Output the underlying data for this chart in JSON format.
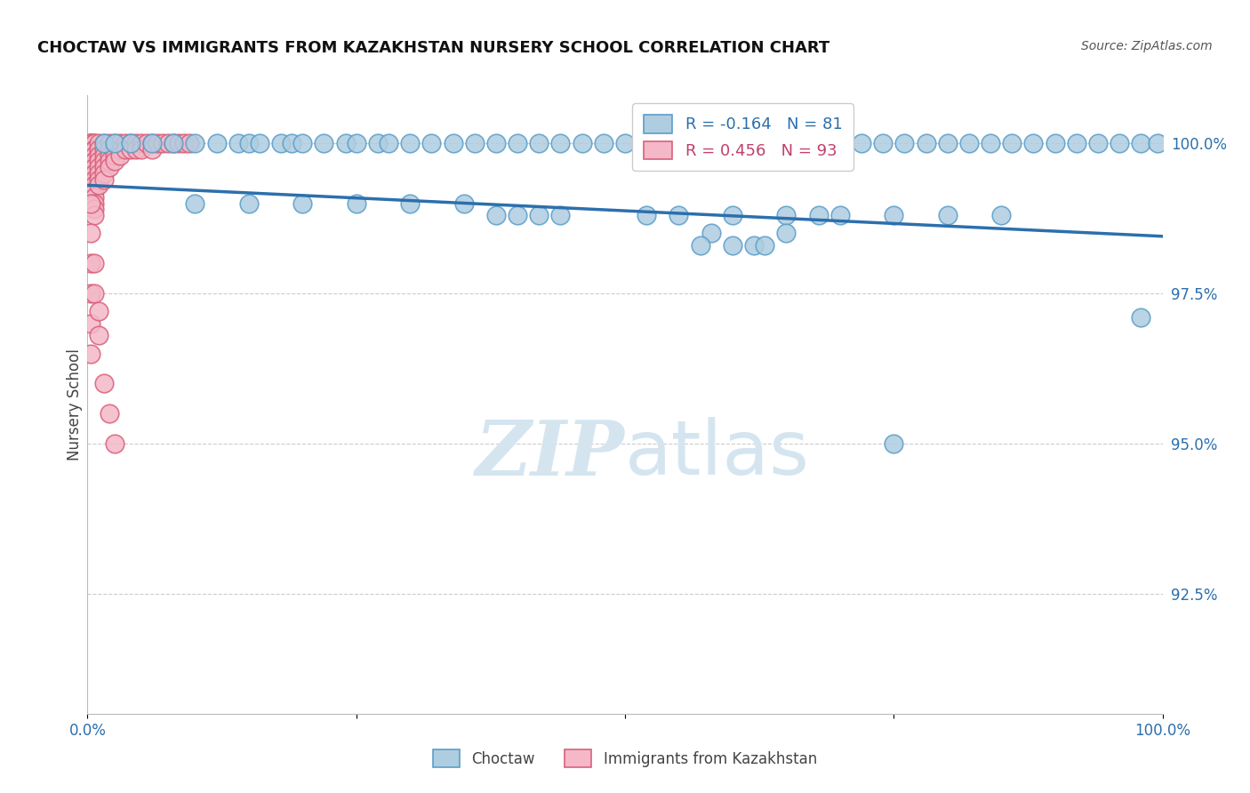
{
  "title": "CHOCTAW VS IMMIGRANTS FROM KAZAKHSTAN NURSERY SCHOOL CORRELATION CHART",
  "source": "Source: ZipAtlas.com",
  "ylabel": "Nursery School",
  "xlim": [
    0.0,
    1.0
  ],
  "ylim": [
    0.905,
    1.008
  ],
  "yticks": [
    0.925,
    0.95,
    0.975,
    1.0
  ],
  "ytick_labels": [
    "92.5%",
    "95.0%",
    "97.5%",
    "100.0%"
  ],
  "xticks": [
    0.0,
    0.25,
    0.5,
    0.75,
    1.0
  ],
  "xtick_labels": [
    "0.0%",
    "",
    "",
    "",
    "100.0%"
  ],
  "blue_R": -0.164,
  "blue_N": 81,
  "pink_R": 0.456,
  "pink_N": 93,
  "blue_color": "#aecde1",
  "pink_color": "#f4b8c8",
  "blue_edge": "#5b9ec9",
  "pink_edge": "#d9607a",
  "trendline_color": "#2c6fad",
  "trendline_start_x": 0.0,
  "trendline_start_y": 0.993,
  "trendline_end_x": 1.0,
  "trendline_end_y": 0.9845,
  "background_color": "#ffffff",
  "grid_color": "#cccccc",
  "watermark_color": "#d5e5f0",
  "legend_blue_label": "Choctaw",
  "legend_pink_label": "Immigrants from Kazakhstan",
  "blue_x": [
    0.015,
    0.025,
    0.04,
    0.06,
    0.08,
    0.1,
    0.12,
    0.14,
    0.15,
    0.16,
    0.18,
    0.19,
    0.2,
    0.22,
    0.24,
    0.25,
    0.27,
    0.28,
    0.3,
    0.32,
    0.34,
    0.36,
    0.38,
    0.4,
    0.42,
    0.44,
    0.46,
    0.48,
    0.5,
    0.52,
    0.54,
    0.56,
    0.58,
    0.6,
    0.62,
    0.64,
    0.66,
    0.68,
    0.7,
    0.72,
    0.74,
    0.76,
    0.78,
    0.8,
    0.82,
    0.84,
    0.86,
    0.88,
    0.9,
    0.92,
    0.94,
    0.96,
    0.98,
    0.1,
    0.15,
    0.2,
    0.25,
    0.3,
    0.35,
    0.38,
    0.4,
    0.42,
    0.44,
    0.52,
    0.55,
    0.6,
    0.65,
    0.68,
    0.7,
    0.75,
    0.8,
    0.85,
    0.58,
    0.65,
    0.6,
    0.62,
    0.63,
    0.57,
    0.995,
    0.98,
    0.75
  ],
  "blue_y": [
    1.0,
    1.0,
    1.0,
    1.0,
    1.0,
    1.0,
    1.0,
    1.0,
    1.0,
    1.0,
    1.0,
    1.0,
    1.0,
    1.0,
    1.0,
    1.0,
    1.0,
    1.0,
    1.0,
    1.0,
    1.0,
    1.0,
    1.0,
    1.0,
    1.0,
    1.0,
    1.0,
    1.0,
    1.0,
    1.0,
    1.0,
    1.0,
    1.0,
    1.0,
    1.0,
    1.0,
    1.0,
    1.0,
    1.0,
    1.0,
    1.0,
    1.0,
    1.0,
    1.0,
    1.0,
    1.0,
    1.0,
    1.0,
    1.0,
    1.0,
    1.0,
    1.0,
    1.0,
    0.99,
    0.99,
    0.99,
    0.99,
    0.99,
    0.99,
    0.988,
    0.988,
    0.988,
    0.988,
    0.988,
    0.988,
    0.988,
    0.988,
    0.988,
    0.988,
    0.988,
    0.988,
    0.988,
    0.985,
    0.985,
    0.983,
    0.983,
    0.983,
    0.983,
    1.0,
    0.971,
    0.95
  ],
  "pink_x": [
    0.003,
    0.003,
    0.003,
    0.003,
    0.003,
    0.003,
    0.003,
    0.003,
    0.003,
    0.003,
    0.003,
    0.003,
    0.003,
    0.003,
    0.003,
    0.003,
    0.003,
    0.003,
    0.003,
    0.003,
    0.006,
    0.006,
    0.006,
    0.006,
    0.006,
    0.006,
    0.006,
    0.006,
    0.006,
    0.006,
    0.006,
    0.006,
    0.006,
    0.006,
    0.006,
    0.01,
    0.01,
    0.01,
    0.01,
    0.01,
    0.01,
    0.01,
    0.01,
    0.015,
    0.015,
    0.015,
    0.015,
    0.015,
    0.015,
    0.015,
    0.02,
    0.02,
    0.02,
    0.02,
    0.02,
    0.025,
    0.025,
    0.025,
    0.025,
    0.03,
    0.03,
    0.03,
    0.035,
    0.035,
    0.04,
    0.04,
    0.045,
    0.045,
    0.05,
    0.05,
    0.055,
    0.06,
    0.06,
    0.065,
    0.07,
    0.075,
    0.08,
    0.085,
    0.09,
    0.095,
    0.003,
    0.003,
    0.003,
    0.003,
    0.003,
    0.003,
    0.006,
    0.006,
    0.01,
    0.01,
    0.015,
    0.02,
    0.025
  ],
  "pink_y": [
    1.0,
    1.0,
    1.0,
    1.0,
    0.999,
    0.999,
    0.999,
    0.998,
    0.998,
    0.997,
    0.997,
    0.996,
    0.996,
    0.995,
    0.995,
    0.994,
    0.994,
    0.993,
    0.993,
    0.992,
    1.0,
    1.0,
    0.999,
    0.999,
    0.998,
    0.997,
    0.996,
    0.995,
    0.994,
    0.993,
    0.992,
    0.991,
    0.99,
    0.989,
    0.988,
    1.0,
    0.999,
    0.998,
    0.997,
    0.996,
    0.995,
    0.994,
    0.993,
    1.0,
    0.999,
    0.998,
    0.997,
    0.996,
    0.995,
    0.994,
    1.0,
    0.999,
    0.998,
    0.997,
    0.996,
    1.0,
    0.999,
    0.998,
    0.997,
    1.0,
    0.999,
    0.998,
    1.0,
    0.999,
    1.0,
    0.999,
    1.0,
    0.999,
    1.0,
    0.999,
    1.0,
    1.0,
    0.999,
    1.0,
    1.0,
    1.0,
    1.0,
    1.0,
    1.0,
    1.0,
    0.99,
    0.985,
    0.98,
    0.975,
    0.97,
    0.965,
    0.98,
    0.975,
    0.972,
    0.968,
    0.96,
    0.955,
    0.95
  ]
}
